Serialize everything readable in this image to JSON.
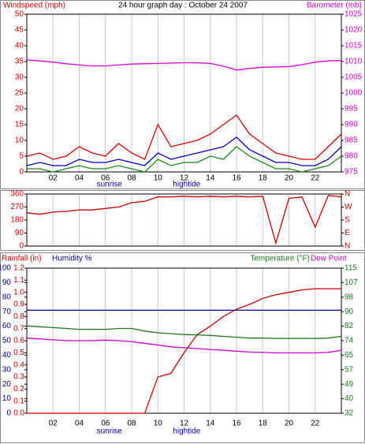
{
  "chart_data": [
    {
      "type": "line",
      "title": "24 hour graph day : October 24 2007",
      "ylabel": "Windspeed (mph)",
      "y2label": "Barometer (mb)",
      "x": [
        0,
        1,
        2,
        3,
        4,
        5,
        6,
        7,
        8,
        9,
        10,
        11,
        12,
        13,
        14,
        15,
        16,
        17,
        18,
        19,
        20,
        21,
        22,
        23,
        24
      ],
      "xlim": [
        0,
        24
      ],
      "xticks": [
        {
          "value": 2,
          "label": "02"
        },
        {
          "value": 4,
          "label": "04"
        },
        {
          "value": 6,
          "label": "06"
        },
        {
          "value": 8,
          "label": "08"
        },
        10,
        12,
        14,
        16,
        18,
        20,
        22
      ],
      "annotations": [
        {
          "text": "sunrise",
          "x": 6.3
        },
        {
          "text": "hightide",
          "x": 12.2
        }
      ],
      "ylim": [
        0,
        50
      ],
      "yticks": [
        0,
        5,
        10,
        15,
        20,
        25,
        30,
        35,
        40,
        45,
        50
      ],
      "y2lim": [
        975,
        1025
      ],
      "y2ticks": [
        975,
        980,
        985,
        990,
        995,
        1000,
        1005,
        1010,
        1015,
        1020,
        1025
      ],
      "grid": true,
      "series": [
        {
          "color": "#dd0000",
          "values": [
            5,
            6,
            4,
            5,
            8,
            6,
            5,
            9,
            6,
            4,
            15,
            8,
            9,
            10,
            12,
            15,
            18,
            12,
            9,
            6,
            5,
            4,
            4,
            8,
            12
          ]
        },
        {
          "color": "#1a8a1a",
          "values": [
            1,
            1,
            0,
            1,
            2,
            1,
            1,
            2,
            1,
            0,
            4,
            2,
            3,
            3,
            5,
            4,
            8,
            5,
            3,
            1,
            1,
            0,
            1,
            2,
            5
          ]
        },
        {
          "color": "#0000cc",
          "values": [
            2,
            3,
            2,
            2,
            4,
            3,
            3,
            4,
            3,
            2,
            6,
            4,
            5,
            6,
            7,
            8,
            11,
            7,
            5,
            3,
            3,
            2,
            2,
            4,
            8
          ]
        },
        {
          "color": "#dd00dd",
          "axis": "y2",
          "values": [
            1010.5,
            1010.2,
            1009.8,
            1009.3,
            1008.9,
            1008.6,
            1008.6,
            1008.9,
            1009.2,
            1009.3,
            1009.4,
            1009.5,
            1009.6,
            1009.6,
            1009.4,
            1008.5,
            1007.3,
            1007.8,
            1008.2,
            1008.3,
            1008.4,
            1009.0,
            1009.8,
            1010.2,
            1010.3
          ]
        }
      ]
    },
    {
      "type": "line",
      "x": [
        0,
        1,
        2,
        3,
        4,
        5,
        6,
        7,
        8,
        9,
        10,
        11,
        12,
        13,
        14,
        15,
        16,
        17,
        18,
        19,
        20,
        21,
        22,
        23,
        24
      ],
      "xlim": [
        0,
        24
      ],
      "ylim": [
        0,
        360
      ],
      "yticks": [
        0,
        90,
        180,
        270,
        360
      ],
      "y2lim": [
        0,
        360
      ],
      "y2ticks": [
        {
          "value": 0,
          "label": "N"
        },
        {
          "value": 90,
          "label": "E"
        },
        {
          "value": 180,
          "label": "S"
        },
        {
          "value": 270,
          "label": "W"
        },
        {
          "value": 360,
          "label": "N"
        }
      ],
      "series": [
        {
          "color": "#cc0000",
          "values": [
            230,
            220,
            235,
            240,
            250,
            250,
            260,
            270,
            300,
            310,
            340,
            340,
            345,
            340,
            345,
            340,
            345,
            340,
            345,
            20,
            330,
            340,
            130,
            350,
            340
          ]
        }
      ]
    },
    {
      "type": "line",
      "x": [
        0,
        1,
        2,
        3,
        4,
        5,
        6,
        7,
        8,
        9,
        10,
        11,
        12,
        13,
        14,
        15,
        16,
        17,
        18,
        19,
        20,
        21,
        22,
        23,
        24
      ],
      "xlim": [
        0,
        24
      ],
      "xticks": [
        {
          "value": 2,
          "label": "02"
        },
        {
          "value": 4,
          "label": "04"
        },
        {
          "value": 6,
          "label": "06"
        },
        {
          "value": 8,
          "label": "08"
        },
        10,
        12,
        14,
        16,
        18,
        20,
        22
      ],
      "annotations": [
        {
          "text": "sunrise",
          "x": 6.3
        },
        {
          "text": "hightide",
          "x": 12.2
        }
      ],
      "ylim": [
        0,
        100
      ],
      "yticks": [
        0,
        10,
        20,
        30,
        40,
        50,
        60,
        70,
        80,
        90,
        100
      ],
      "y3lim": [
        0,
        1.2
      ],
      "y3ticks": [
        {
          "value": 0,
          "label": "0.0"
        },
        0.1,
        0.2,
        0.3,
        0.4,
        0.5,
        0.6,
        0.7,
        0.8,
        0.9,
        {
          "value": 1,
          "label": "1.0"
        },
        1.1,
        1.2
      ],
      "y2lim": [
        32,
        115
      ],
      "y2ticks": [
        32,
        {
          "value": 40.3,
          "label": "40"
        },
        {
          "value": 48.6,
          "label": "49"
        },
        {
          "value": 56.9,
          "label": "57"
        },
        {
          "value": 65.2,
          "label": "65"
        },
        {
          "value": 73.5,
          "label": "74"
        },
        {
          "value": 81.8,
          "label": "82"
        },
        {
          "value": 90.1,
          "label": "90"
        },
        {
          "value": 98.4,
          "label": "98"
        },
        {
          "value": 106.7,
          "label": "107"
        },
        115
      ],
      "series": [
        {
          "name": "Rainfall (in)",
          "color": "#cc0000",
          "axis": "y3",
          "values": [
            0,
            0,
            0,
            0,
            0,
            0,
            0,
            0,
            0,
            0,
            0.3,
            0.33,
            0.5,
            0.65,
            0.72,
            0.8,
            0.86,
            0.9,
            0.95,
            0.98,
            1.0,
            1.02,
            1.03,
            1.03,
            1.03
          ]
        },
        {
          "name": "Humidity %",
          "color": "#000099",
          "values": [
            71,
            71,
            71,
            71,
            71,
            71,
            71,
            71,
            71,
            71,
            71,
            71,
            71,
            71,
            71,
            71,
            71,
            71,
            71,
            71,
            71,
            71,
            71,
            71,
            71
          ]
        },
        {
          "name": "Temperature (°F)",
          "color": "#1a7a1a",
          "axis": "y2",
          "values": [
            82,
            81.5,
            81,
            80.5,
            80,
            80,
            80,
            80.5,
            80.5,
            79,
            78,
            77.5,
            77,
            76.8,
            76.5,
            76,
            75.5,
            75,
            75,
            74.8,
            74.8,
            74.8,
            74.8,
            75,
            76
          ]
        },
        {
          "name": "Dew Point",
          "color": "#cc00cc",
          "axis": "y2",
          "values": [
            75,
            74.5,
            74,
            73.5,
            73.5,
            73.5,
            73.8,
            73.5,
            73,
            72,
            71,
            70,
            69.5,
            69,
            68.5,
            68,
            67.5,
            67,
            66.8,
            66.5,
            66.5,
            66.5,
            66.5,
            66.8,
            68
          ]
        }
      ]
    }
  ]
}
